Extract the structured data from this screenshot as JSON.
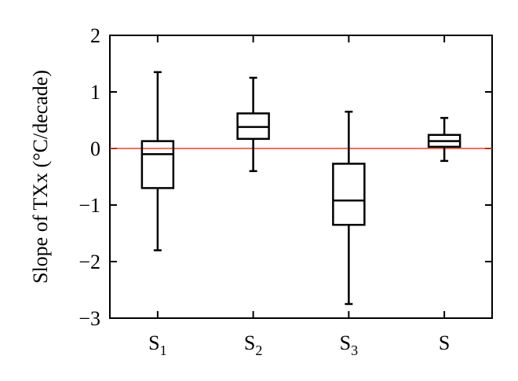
{
  "chart_data": {
    "type": "box",
    "ylabel": "Slope of TXx (°C/decade)",
    "xlabel": "",
    "ylim": [
      -3,
      2
    ],
    "yticks": [
      "2",
      "1",
      "0",
      "−1",
      "−2",
      "−3"
    ],
    "reference_line": {
      "y": 0,
      "color": "#e8402a"
    },
    "categories": [
      {
        "base": "S",
        "sub": "1"
      },
      {
        "base": "S",
        "sub": "2"
      },
      {
        "base": "S",
        "sub": "3"
      },
      {
        "base": "S",
        "sub": ""
      }
    ],
    "boxes": [
      {
        "min": -1.8,
        "q1": -0.7,
        "median": -0.1,
        "q3": 0.13,
        "max": 1.35
      },
      {
        "min": -0.4,
        "q1": 0.17,
        "median": 0.38,
        "q3": 0.62,
        "max": 1.25
      },
      {
        "min": -2.75,
        "q1": -1.35,
        "median": -0.92,
        "q3": -0.27,
        "max": 0.65
      },
      {
        "min": -0.22,
        "q1": 0.03,
        "median": 0.13,
        "q3": 0.24,
        "max": 0.54
      }
    ],
    "grid": false,
    "colors": {
      "box": "#000000",
      "reference": "#e8402a"
    }
  }
}
